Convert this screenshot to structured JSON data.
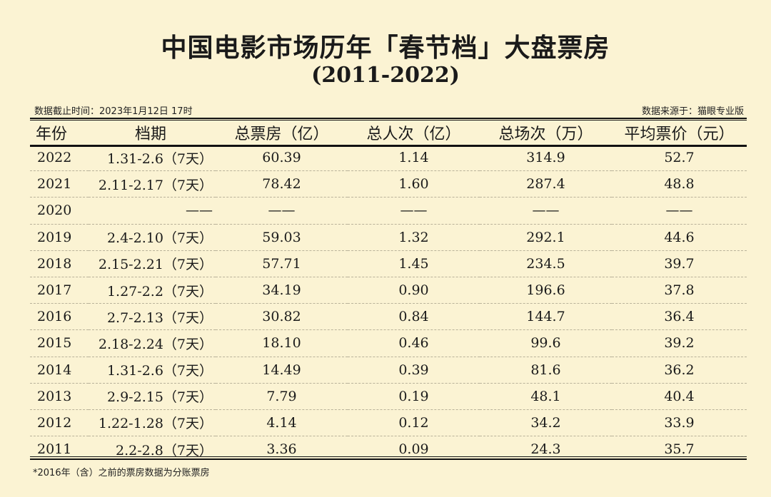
{
  "title": "中国电影市场历年「春节档」大盘票房",
  "subtitle": "(2011-2022)",
  "meta": {
    "cutoff": "数据截止时间：2023年1月12日 17时",
    "source": "数据来源于：猫眼专业版"
  },
  "table": {
    "headers": [
      "年份",
      "档期",
      "总票房（亿）",
      "总人次（亿）",
      "总场次（万）",
      "平均票价（元）"
    ],
    "rows": [
      [
        "2022",
        "1.31-2.6（7天）",
        "60.39",
        "1.14",
        "314.9",
        "52.7"
      ],
      [
        "2021",
        "2.11-2.17（7天）",
        "78.42",
        "1.60",
        "287.4",
        "48.8"
      ],
      [
        "2020",
        "——",
        "——",
        "——",
        "——",
        "——"
      ],
      [
        "2019",
        "2.4-2.10（7天）",
        "59.03",
        "1.32",
        "292.1",
        "44.6"
      ],
      [
        "2018",
        "2.15-2.21（7天）",
        "57.71",
        "1.45",
        "234.5",
        "39.7"
      ],
      [
        "2017",
        "1.27-2.2（7天）",
        "34.19",
        "0.90",
        "196.6",
        "37.8"
      ],
      [
        "2016",
        "2.7-2.13（7天）",
        "30.82",
        "0.84",
        "144.7",
        "36.4"
      ],
      [
        "2015",
        "2.18-2.24（7天）",
        "18.10",
        "0.46",
        "99.6",
        "39.2"
      ],
      [
        "2014",
        "1.31-2.6（7天）",
        "14.49",
        "0.39",
        "81.6",
        "36.2"
      ],
      [
        "2013",
        "2.9-2.15（7天）",
        "7.79",
        "0.19",
        "48.1",
        "40.4"
      ],
      [
        "2012",
        "1.22-1.28（7天）",
        "4.14",
        "0.12",
        "34.2",
        "33.9"
      ],
      [
        "2011",
        "2.2-2.8（7天）",
        "3.36",
        "0.09",
        "24.3",
        "35.7"
      ]
    ]
  },
  "footnote": "*2016年（含）之前的票房数据为分账票房"
}
